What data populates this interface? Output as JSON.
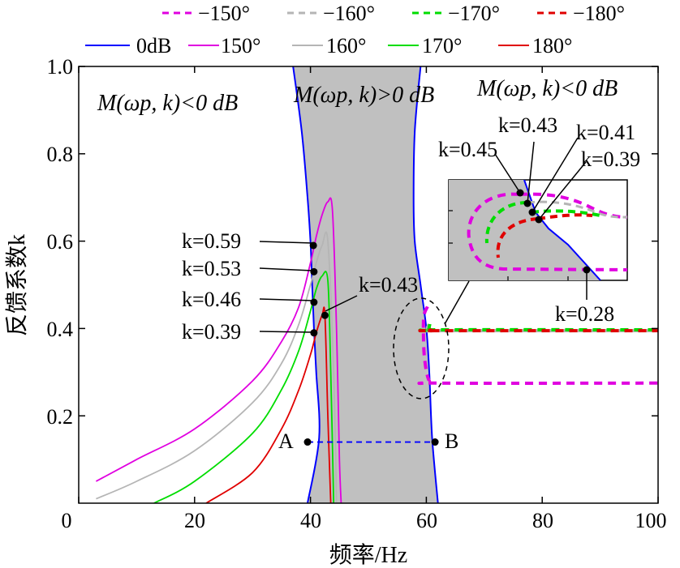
{
  "chart_data": {
    "type": "line",
    "xlabel": "频率/Hz",
    "ylabel": "反馈系数k",
    "xlim": [
      0,
      100
    ],
    "ylim": [
      0,
      1.0
    ],
    "x_ticks": [
      "0",
      "20",
      "40",
      "60",
      "80",
      "100"
    ],
    "y_ticks": [
      "0.2",
      "0.4",
      "0.6",
      "0.8",
      "1.0"
    ],
    "grid": false,
    "legend_position": "top",
    "legend": [
      {
        "label": "−150°",
        "color": "#e000e0",
        "dash": true
      },
      {
        "label": "−160°",
        "color": "#b5b5b5",
        "dash": true
      },
      {
        "label": "−170°",
        "color": "#00dd00",
        "dash": true
      },
      {
        "label": "−180°",
        "color": "#e00000",
        "dash": true
      },
      {
        "label": "0dB",
        "color": "#0000ff",
        "dash": false
      },
      {
        "label": "150°",
        "color": "#e000e0",
        "dash": false
      },
      {
        "label": "160°",
        "color": "#b5b5b5",
        "dash": false
      },
      {
        "label": "170°",
        "color": "#00dd00",
        "dash": false
      },
      {
        "label": "180°",
        "color": "#e00000",
        "dash": false
      }
    ],
    "regions": [
      {
        "label": "M(ωp, k)<0 dB",
        "side": "left"
      },
      {
        "label": "M(ωp, k)>0 dB",
        "side": "middle"
      },
      {
        "label": "M(ωp, k)<0 dB",
        "side": "right"
      }
    ],
    "zero_db_boundary": {
      "left": {
        "x": [
          37.0,
          38.5,
          39.5,
          40.0,
          40.3,
          40.6,
          41.0,
          41.5,
          39.5
        ],
        "y": [
          1.0,
          0.85,
          0.7,
          0.6,
          0.5,
          0.4,
          0.3,
          0.15,
          0.0
        ]
      },
      "right": {
        "x": [
          59.0,
          58.0,
          57.8,
          58.0,
          59.0,
          60.0,
          60.5,
          61.0,
          62.0
        ],
        "y": [
          1.0,
          0.85,
          0.7,
          0.6,
          0.5,
          0.4,
          0.3,
          0.15,
          0.0
        ]
      }
    },
    "series": [
      {
        "name": "150°",
        "color": "#e000e0",
        "x": [
          3,
          10,
          20,
          30,
          35,
          38,
          40,
          41,
          42,
          43,
          43.8,
          44.5,
          45.0,
          45.3
        ],
        "y": [
          0.05,
          0.1,
          0.17,
          0.28,
          0.37,
          0.45,
          0.55,
          0.61,
          0.66,
          0.69,
          0.67,
          0.4,
          0.1,
          0.0
        ]
      },
      {
        "name": "160°",
        "color": "#b5b5b5",
        "x": [
          3,
          10,
          20,
          30,
          35,
          38,
          40,
          41,
          42,
          43,
          44.0,
          44.5
        ],
        "y": [
          0.01,
          0.05,
          0.12,
          0.23,
          0.32,
          0.41,
          0.5,
          0.55,
          0.59,
          0.6,
          0.3,
          0.0
        ]
      },
      {
        "name": "170°",
        "color": "#00dd00",
        "x": [
          13,
          20,
          30,
          35,
          38,
          40,
          41,
          42,
          43,
          43.5,
          44.0
        ],
        "y": [
          0.0,
          0.05,
          0.16,
          0.26,
          0.35,
          0.44,
          0.49,
          0.52,
          0.51,
          0.3,
          0.0
        ]
      },
      {
        "name": "180°",
        "color": "#e00000",
        "x": [
          22,
          30,
          35,
          38,
          40,
          41,
          42,
          42.5,
          43.0,
          43.5
        ],
        "y": [
          0.0,
          0.07,
          0.17,
          0.26,
          0.34,
          0.39,
          0.43,
          0.43,
          0.2,
          0.0
        ]
      },
      {
        "name": "−150°",
        "color": "#e000e0",
        "dashed": true,
        "x": [
          60.2,
          59.6,
          59.5,
          59.7,
          60.5,
          62,
          100
        ],
        "y": [
          0.45,
          0.43,
          0.39,
          0.33,
          0.28,
          0.275,
          0.275
        ]
      },
      {
        "name": "−160°",
        "color": "#b5b5b5",
        "dashed": true,
        "x": [
          60.5,
          60.2,
          61,
          62,
          100
        ],
        "y": [
          0.41,
          0.4,
          0.395,
          0.395,
          0.395
        ]
      },
      {
        "name": "−170°",
        "color": "#00dd00",
        "dashed": true,
        "x": [
          60.6,
          60.5,
          61,
          62,
          100
        ],
        "y": [
          0.41,
          0.4,
          0.395,
          0.397,
          0.397
        ]
      },
      {
        "name": "−180°",
        "color": "#e00000",
        "dashed": true,
        "x": [
          60.8,
          60.7,
          61,
          62,
          100
        ],
        "y": [
          0.4,
          0.395,
          0.395,
          0.395,
          0.395
        ]
      }
    ],
    "points": [
      {
        "label": "k=0.59",
        "x": 40.5,
        "y": 0.59
      },
      {
        "label": "k=0.53",
        "x": 40.6,
        "y": 0.53
      },
      {
        "label": "k=0.46",
        "x": 40.6,
        "y": 0.46
      },
      {
        "label": "k=0.39",
        "x": 40.6,
        "y": 0.39
      },
      {
        "label": "k=0.43",
        "x": 42.5,
        "y": 0.43
      }
    ],
    "inset_points": [
      {
        "label": "k=0.45"
      },
      {
        "label": "k=0.43"
      },
      {
        "label": "k=0.41"
      },
      {
        "label": "k=0.39"
      },
      {
        "label": "k=0.28"
      }
    ],
    "AB_line": {
      "y": 0.14,
      "A": {
        "label": "A",
        "x": 39.5
      },
      "B": {
        "label": "B",
        "x": 61.5
      }
    }
  }
}
